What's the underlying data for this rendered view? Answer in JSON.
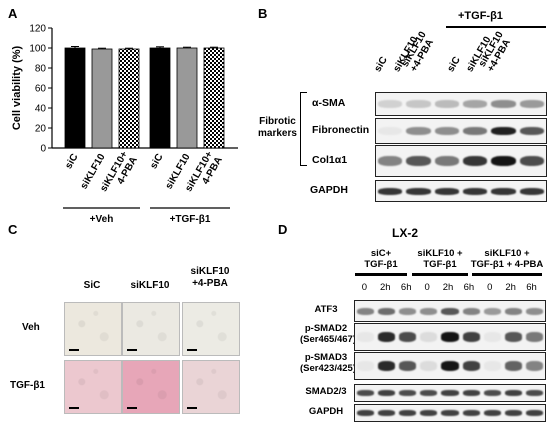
{
  "panelA": {
    "letter": "A",
    "chart_data": {
      "type": "bar",
      "ylabel": "Cell viability (%)",
      "ylim": [
        0,
        120
      ],
      "yticks": [
        0,
        20,
        40,
        60,
        80,
        100,
        120
      ],
      "categories": [
        "siC",
        "siKLF10",
        "siKLF10+\n4-PBA",
        "siC",
        "siKLF10",
        "siKLF10+\n4-PBA"
      ],
      "values": [
        100,
        99,
        99,
        100,
        100,
        100
      ],
      "errors": [
        1.5,
        0.8,
        0.8,
        1.2,
        0.8,
        0.8
      ],
      "fills": [
        "#000000",
        "#999999",
        "checker",
        "#000000",
        "#999999",
        "checker"
      ],
      "groups": [
        {
          "label": "+Veh"
        },
        {
          "label": "+TGF-β1"
        }
      ]
    }
  },
  "panelB": {
    "letter": "B",
    "treatment": "+TGF-β1",
    "lanes": [
      "siC",
      "siKLF10",
      "siKLF10\n+4-PBA",
      "siC",
      "siKLF10",
      "siKLF10\n+4-PBA"
    ],
    "group_label": "Fibrotic\nmarkers",
    "rows": [
      {
        "label": "α-SMA",
        "intensity": [
          0.15,
          0.2,
          0.25,
          0.35,
          0.45,
          0.4
        ]
      },
      {
        "label": "Fibronectin",
        "intensity": [
          0.05,
          0.45,
          0.45,
          0.55,
          0.95,
          0.7
        ]
      },
      {
        "label": "Col1α1",
        "intensity": [
          0.5,
          0.7,
          0.55,
          0.85,
          1.0,
          0.75
        ]
      },
      {
        "label": "GAPDH",
        "intensity": [
          0.85,
          0.85,
          0.85,
          0.85,
          0.85,
          0.85
        ]
      }
    ]
  },
  "panelC": {
    "letter": "C",
    "columns": [
      "SiC",
      "siKLF10",
      "siKLF10\n+4-PBA"
    ],
    "rows": [
      "Veh",
      "TGF-β1"
    ],
    "tiles": [
      [
        "#ece8de",
        "#ebe9e2",
        "#ecebe4"
      ],
      [
        "#ecc8cf",
        "#e7a6b8",
        "#ead4d6"
      ]
    ]
  },
  "panelD": {
    "letter": "D",
    "title": "LX-2",
    "groups": [
      "siC+\nTGF-β1",
      "siKLF10 +\nTGF-β1",
      "siKLF10 +\nTGF-β1 + 4-PBA"
    ],
    "timepoints": [
      "0",
      "2h",
      "6h",
      "0",
      "2h",
      "6h",
      "0",
      "2h",
      "6h"
    ],
    "rows": [
      {
        "label": "ATF3",
        "intensity": [
          0.5,
          0.6,
          0.45,
          0.45,
          0.7,
          0.5,
          0.4,
          0.5,
          0.45
        ]
      },
      {
        "label": "p-SMAD2\n(Ser465/467)",
        "intensity": [
          0.05,
          0.9,
          0.75,
          0.1,
          1.0,
          0.8,
          0.05,
          0.7,
          0.55
        ]
      },
      {
        "label": "p-SMAD3\n(Ser423/425)",
        "intensity": [
          0.05,
          0.9,
          0.7,
          0.1,
          1.0,
          0.8,
          0.05,
          0.65,
          0.5
        ]
      },
      {
        "label": "SMAD2/3",
        "intensity": [
          0.75,
          0.8,
          0.75,
          0.75,
          0.8,
          0.8,
          0.75,
          0.8,
          0.75
        ]
      },
      {
        "label": "GAPDH",
        "intensity": [
          0.8,
          0.8,
          0.8,
          0.8,
          0.8,
          0.8,
          0.8,
          0.8,
          0.8
        ]
      }
    ]
  }
}
